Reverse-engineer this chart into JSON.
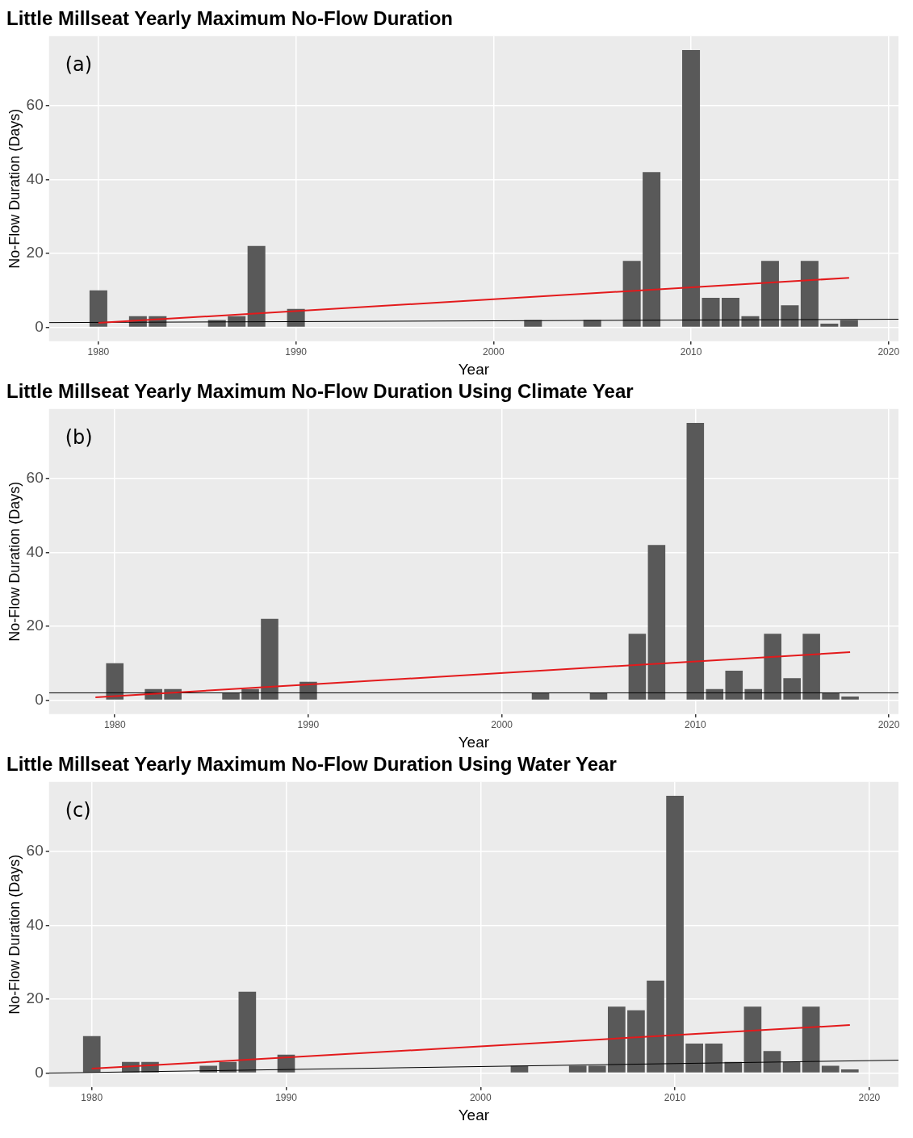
{
  "chart_data": [
    {
      "type": "bar",
      "title": "Little Millseat Yearly Maximum No-Flow Duration",
      "xlabel": "Year",
      "ylabel": "No-Flow Duration (Days)",
      "annotations": [
        "(a)"
      ],
      "xlim": [
        1977.5,
        2020.5
      ],
      "xticks": [
        1980,
        1990,
        2000,
        2010,
        2020
      ],
      "ylim": [
        -3.75,
        78.75
      ],
      "yticks": [
        0,
        20,
        40,
        60
      ],
      "grid": true,
      "series": [
        {
          "color": "#595959",
          "x": [
            1980,
            1982,
            1983,
            1986,
            1987,
            1988,
            1990,
            2002,
            2005,
            2007,
            2008,
            2010,
            2011,
            2012,
            2013,
            2014,
            2015,
            2016,
            2017,
            2018
          ],
          "values": [
            10,
            3,
            3,
            2,
            3,
            22,
            5,
            2,
            2,
            18,
            42,
            75,
            8,
            8,
            3,
            18,
            6,
            18,
            1,
            2
          ]
        },
        {
          "type": "line",
          "color": "#e31a1c",
          "x": [
            1980,
            2018
          ],
          "values": [
            1.2,
            13.4
          ]
        },
        {
          "type": "line",
          "color": "#000000",
          "x": [
            1977.5,
            2020.5
          ],
          "values": [
            1.3,
            2.2
          ]
        }
      ]
    },
    {
      "type": "bar",
      "title": "Little Millseat Yearly Maximum No-Flow Duration Using Climate Year",
      "xlabel": "Year",
      "ylabel": "No-Flow Duration (Days)",
      "annotations": [
        "(b)"
      ],
      "xlim": [
        1976.6,
        2020.5
      ],
      "xticks": [
        1980,
        1990,
        2000,
        2010,
        2020
      ],
      "ylim": [
        -3.75,
        78.75
      ],
      "yticks": [
        0,
        20,
        40,
        60
      ],
      "grid": true,
      "series": [
        {
          "color": "#595959",
          "x": [
            1980,
            1982,
            1983,
            1986,
            1987,
            1988,
            1990,
            2002,
            2005,
            2007,
            2008,
            2010,
            2011,
            2012,
            2013,
            2014,
            2015,
            2016,
            2017,
            2018
          ],
          "values": [
            10,
            3,
            3,
            2,
            3,
            22,
            5,
            2,
            2,
            18,
            42,
            75,
            3,
            8,
            3,
            18,
            6,
            18,
            2,
            1
          ]
        },
        {
          "type": "line",
          "color": "#e31a1c",
          "x": [
            1979,
            2018
          ],
          "values": [
            0.8,
            13
          ]
        },
        {
          "type": "line",
          "color": "#000000",
          "x": [
            1976.6,
            2020.5
          ],
          "values": [
            2,
            2
          ]
        }
      ]
    },
    {
      "type": "bar",
      "title": "Little Millseat Yearly Maximum No-Flow Duration Using Water Year",
      "xlabel": "Year",
      "ylabel": "No-Flow Duration (Days)",
      "annotations": [
        "(c)"
      ],
      "xlim": [
        1977.8,
        2021.5
      ],
      "xticks": [
        1980,
        1990,
        2000,
        2010,
        2020
      ],
      "ylim": [
        -3.75,
        78.75
      ],
      "yticks": [
        0,
        20,
        40,
        60
      ],
      "grid": true,
      "series": [
        {
          "color": "#595959",
          "x": [
            1980,
            1982,
            1983,
            1986,
            1987,
            1988,
            1990,
            2002,
            2005,
            2006,
            2007,
            2008,
            2009,
            2010,
            2011,
            2012,
            2013,
            2014,
            2015,
            2016,
            2017,
            2018,
            2019
          ],
          "values": [
            10,
            3,
            3,
            2,
            3,
            22,
            5,
            2,
            2,
            2,
            18,
            17,
            25,
            75,
            8,
            8,
            3,
            18,
            6,
            3,
            18,
            2,
            1
          ]
        },
        {
          "type": "line",
          "color": "#e31a1c",
          "x": [
            1980,
            2019
          ],
          "values": [
            1.2,
            13
          ]
        },
        {
          "type": "line",
          "color": "#000000",
          "x": [
            1977.8,
            2021.5
          ],
          "values": [
            0,
            3.5
          ]
        }
      ]
    }
  ]
}
